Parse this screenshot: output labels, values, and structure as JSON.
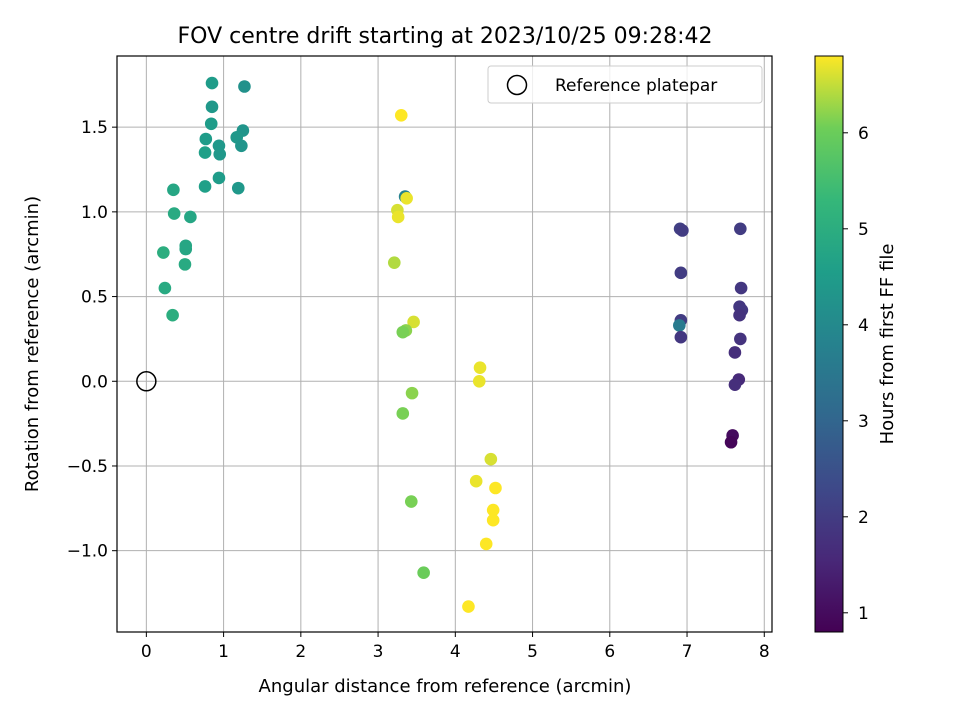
{
  "chart_data": {
    "type": "scatter",
    "title": "FOV centre drift starting at 2023/10/25 09:28:42",
    "xlabel": "Angular distance from reference (arcmin)",
    "ylabel": "Rotation from reference (arcmin)",
    "xlim": [
      -0.38,
      8.1
    ],
    "ylim": [
      -1.48,
      1.92
    ],
    "xticks": [
      0,
      1,
      2,
      3,
      4,
      5,
      6,
      7,
      8
    ],
    "yticks": [
      -1.0,
      -0.5,
      0.0,
      0.5,
      1.0,
      1.5
    ],
    "xtick_labels": [
      "0",
      "1",
      "2",
      "3",
      "4",
      "5",
      "6",
      "7",
      "8"
    ],
    "ytick_labels": [
      "−1.0",
      "−0.5",
      "0.0",
      "0.5",
      "1.0",
      "1.5"
    ],
    "grid": true,
    "legend": {
      "location": "upper-right",
      "entries": [
        "Reference platepar"
      ]
    },
    "reference_point": {
      "x": 0,
      "y": 0
    },
    "colorbar": {
      "label": "Hours from first FF file",
      "colormap": "viridis",
      "range": [
        0.8,
        6.8
      ],
      "ticks": [
        1,
        2,
        3,
        4,
        5,
        6
      ],
      "tick_labels": [
        "1",
        "2",
        "3",
        "4",
        "5",
        "6"
      ]
    },
    "points": [
      {
        "x": 0.85,
        "y": 1.76,
        "c": 4.5
      },
      {
        "x": 1.27,
        "y": 1.74,
        "c": 4.2
      },
      {
        "x": 0.85,
        "y": 1.62,
        "c": 4.4
      },
      {
        "x": 0.84,
        "y": 1.52,
        "c": 4.5
      },
      {
        "x": 1.25,
        "y": 1.48,
        "c": 4.3
      },
      {
        "x": 0.77,
        "y": 1.43,
        "c": 4.5
      },
      {
        "x": 1.17,
        "y": 1.44,
        "c": 4.4
      },
      {
        "x": 0.94,
        "y": 1.39,
        "c": 4.4
      },
      {
        "x": 1.23,
        "y": 1.39,
        "c": 4.3
      },
      {
        "x": 0.76,
        "y": 1.35,
        "c": 4.6
      },
      {
        "x": 0.95,
        "y": 1.34,
        "c": 4.4
      },
      {
        "x": 0.94,
        "y": 1.2,
        "c": 4.5
      },
      {
        "x": 0.76,
        "y": 1.15,
        "c": 4.6
      },
      {
        "x": 1.19,
        "y": 1.14,
        "c": 4.4
      },
      {
        "x": 0.35,
        "y": 1.13,
        "c": 4.8
      },
      {
        "x": 0.36,
        "y": 0.99,
        "c": 4.9
      },
      {
        "x": 0.57,
        "y": 0.97,
        "c": 4.8
      },
      {
        "x": 0.51,
        "y": 0.8,
        "c": 4.8
      },
      {
        "x": 0.51,
        "y": 0.78,
        "c": 4.8
      },
      {
        "x": 0.22,
        "y": 0.76,
        "c": 5.0
      },
      {
        "x": 0.5,
        "y": 0.69,
        "c": 4.9
      },
      {
        "x": 0.24,
        "y": 0.55,
        "c": 4.9
      },
      {
        "x": 0.34,
        "y": 0.39,
        "c": 5.0
      },
      {
        "x": 3.3,
        "y": 1.57,
        "c": 6.8
      },
      {
        "x": 3.35,
        "y": 1.09,
        "c": 3.8
      },
      {
        "x": 3.37,
        "y": 1.08,
        "c": 6.7
      },
      {
        "x": 3.25,
        "y": 1.01,
        "c": 6.6
      },
      {
        "x": 3.26,
        "y": 0.97,
        "c": 6.7
      },
      {
        "x": 3.21,
        "y": 0.7,
        "c": 6.4
      },
      {
        "x": 3.46,
        "y": 0.35,
        "c": 6.6
      },
      {
        "x": 3.36,
        "y": 0.3,
        "c": 6.2
      },
      {
        "x": 3.32,
        "y": 0.29,
        "c": 6.1
      },
      {
        "x": 3.44,
        "y": -0.07,
        "c": 6.2
      },
      {
        "x": 3.32,
        "y": -0.19,
        "c": 6.1
      },
      {
        "x": 3.43,
        "y": -0.71,
        "c": 6.1
      },
      {
        "x": 3.59,
        "y": -1.13,
        "c": 6.0
      },
      {
        "x": 4.32,
        "y": 0.08,
        "c": 6.7
      },
      {
        "x": 4.31,
        "y": 0.0,
        "c": 6.7
      },
      {
        "x": 4.46,
        "y": -0.46,
        "c": 6.6
      },
      {
        "x": 4.27,
        "y": -0.59,
        "c": 6.7
      },
      {
        "x": 4.52,
        "y": -0.63,
        "c": 6.8
      },
      {
        "x": 4.49,
        "y": -0.76,
        "c": 6.8
      },
      {
        "x": 4.49,
        "y": -0.82,
        "c": 6.8
      },
      {
        "x": 4.4,
        "y": -0.96,
        "c": 6.8
      },
      {
        "x": 4.17,
        "y": -1.33,
        "c": 6.8
      },
      {
        "x": 6.91,
        "y": 0.9,
        "c": 2.1
      },
      {
        "x": 6.94,
        "y": 0.89,
        "c": 2.0
      },
      {
        "x": 7.69,
        "y": 0.9,
        "c": 2.0
      },
      {
        "x": 6.92,
        "y": 0.64,
        "c": 2.0
      },
      {
        "x": 7.7,
        "y": 0.55,
        "c": 1.9
      },
      {
        "x": 7.68,
        "y": 0.44,
        "c": 1.9
      },
      {
        "x": 7.71,
        "y": 0.42,
        "c": 1.9
      },
      {
        "x": 7.68,
        "y": 0.39,
        "c": 1.8
      },
      {
        "x": 6.92,
        "y": 0.36,
        "c": 2.0
      },
      {
        "x": 6.9,
        "y": 0.33,
        "c": 3.6
      },
      {
        "x": 6.92,
        "y": 0.26,
        "c": 1.9
      },
      {
        "x": 7.69,
        "y": 0.25,
        "c": 1.8
      },
      {
        "x": 7.62,
        "y": 0.17,
        "c": 1.7
      },
      {
        "x": 7.67,
        "y": 0.01,
        "c": 1.6
      },
      {
        "x": 7.62,
        "y": -0.02,
        "c": 1.7
      },
      {
        "x": 7.59,
        "y": -0.32,
        "c": 1.0
      },
      {
        "x": 7.57,
        "y": -0.36,
        "c": 0.9
      }
    ]
  }
}
